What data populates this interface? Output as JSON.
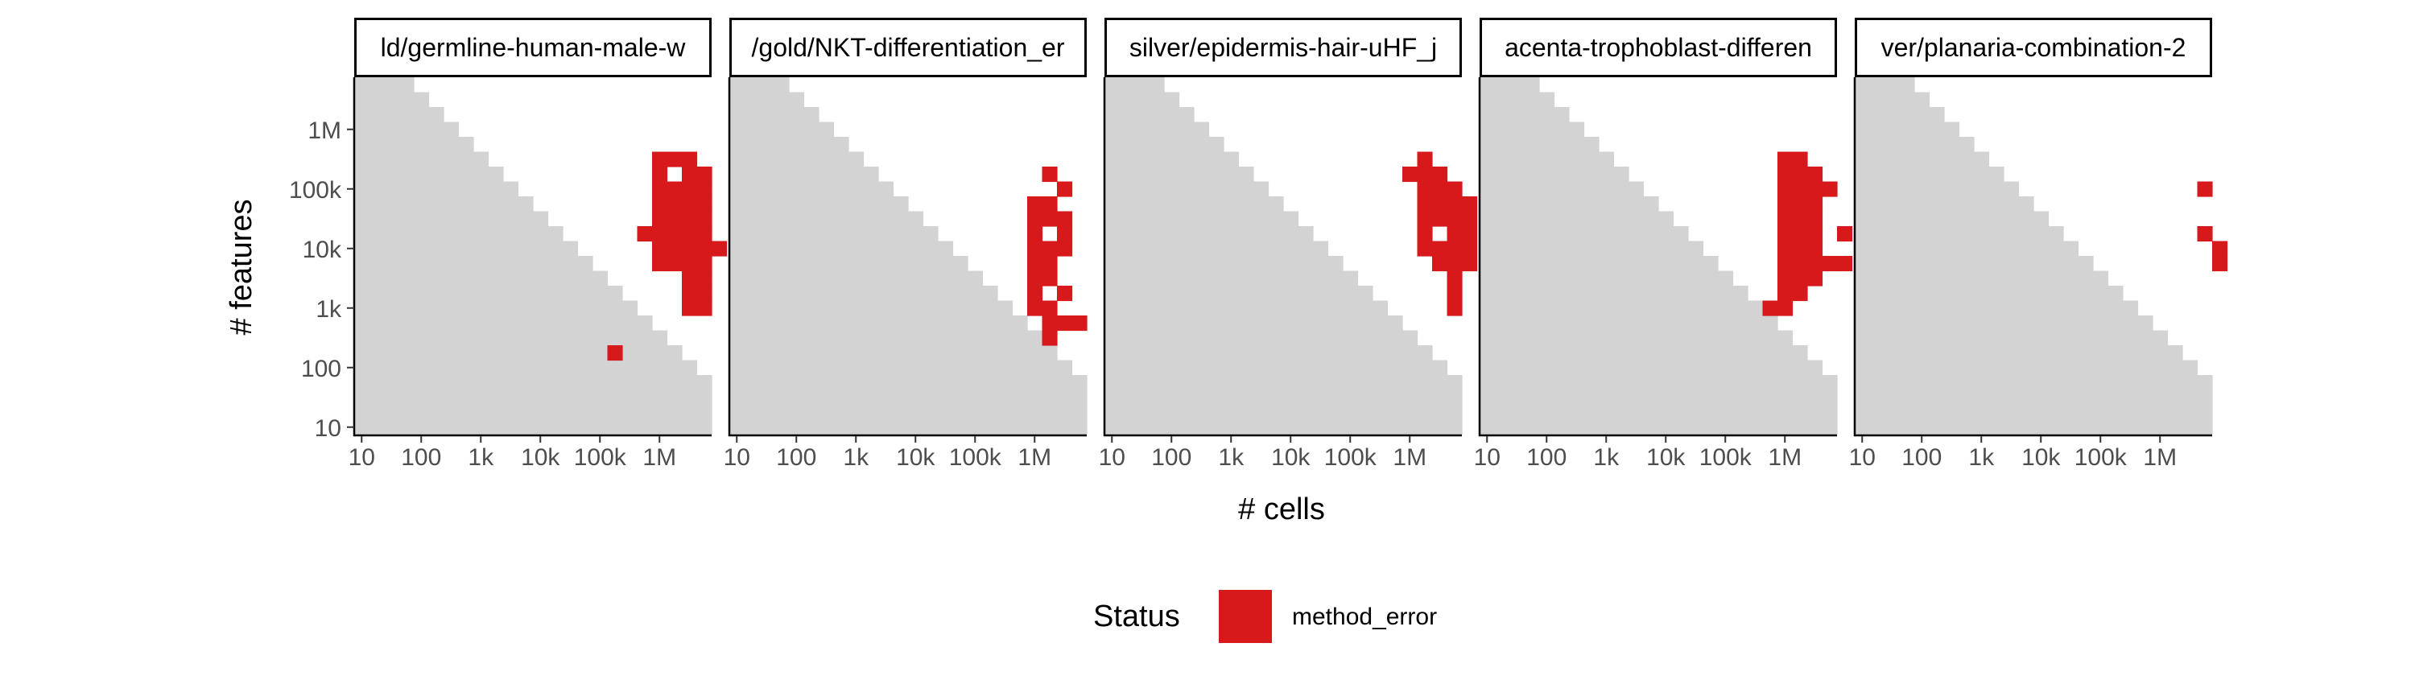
{
  "chart_data": {
    "type": "heatmap",
    "xlabel": "# cells",
    "ylabel": "# features",
    "x_scale": "log10",
    "y_scale": "log10",
    "xlim": [
      10,
      1000000
    ],
    "ylim": [
      10,
      1000000
    ],
    "x_ticks": [
      10,
      100,
      1000,
      10000,
      100000,
      1000000
    ],
    "x_tick_labels": [
      "10",
      "100",
      "1k",
      "10k",
      "100k",
      "1M"
    ],
    "y_ticks": [
      10,
      100,
      1000,
      10000,
      100000,
      1000000
    ],
    "y_tick_labels": [
      "10",
      "100",
      "1k",
      "10k",
      "100k",
      "1M"
    ],
    "background_region_color": "#d3d3d3",
    "legend": {
      "title": "Status",
      "position": "bottom",
      "items": [
        {
          "label": "method_error",
          "color": "#d7191c"
        }
      ]
    },
    "facets": [
      {
        "strip": "ld/germline-human-male-w",
        "method_error_cells": [
          [
            24,
            22
          ],
          [
            25,
            22
          ],
          [
            26,
            22
          ],
          [
            24,
            21
          ],
          [
            26,
            21
          ],
          [
            27,
            21
          ],
          [
            24,
            20
          ],
          [
            25,
            20
          ],
          [
            26,
            20
          ],
          [
            27,
            20
          ],
          [
            24,
            19
          ],
          [
            25,
            19
          ],
          [
            26,
            19
          ],
          [
            27,
            19
          ],
          [
            24,
            18
          ],
          [
            25,
            18
          ],
          [
            26,
            18
          ],
          [
            27,
            18
          ],
          [
            23,
            17
          ],
          [
            24,
            17
          ],
          [
            25,
            17
          ],
          [
            26,
            17
          ],
          [
            27,
            17
          ],
          [
            24,
            16
          ],
          [
            25,
            16
          ],
          [
            26,
            16
          ],
          [
            27,
            16
          ],
          [
            28,
            16
          ],
          [
            24,
            15
          ],
          [
            25,
            15
          ],
          [
            26,
            15
          ],
          [
            27,
            15
          ],
          [
            26,
            14
          ],
          [
            27,
            14
          ],
          [
            26,
            13
          ],
          [
            27,
            13
          ],
          [
            26,
            12
          ],
          [
            27,
            12
          ],
          [
            21,
            9
          ]
        ]
      },
      {
        "strip": "/gold/NKT-differentiation_er",
        "method_error_cells": [
          [
            25,
            21
          ],
          [
            26,
            20
          ],
          [
            24,
            19
          ],
          [
            25,
            19
          ],
          [
            24,
            18
          ],
          [
            25,
            18
          ],
          [
            26,
            18
          ],
          [
            24,
            17
          ],
          [
            26,
            17
          ],
          [
            24,
            16
          ],
          [
            25,
            16
          ],
          [
            26,
            16
          ],
          [
            24,
            15
          ],
          [
            25,
            15
          ],
          [
            24,
            14
          ],
          [
            25,
            14
          ],
          [
            24,
            13
          ],
          [
            26,
            13
          ],
          [
            24,
            12
          ],
          [
            25,
            12
          ],
          [
            25,
            11
          ],
          [
            26,
            11
          ],
          [
            27,
            11
          ],
          [
            25,
            10
          ]
        ]
      },
      {
        "strip": "silver/epidermis-hair-uHF_j",
        "method_error_cells": [
          [
            25,
            22
          ],
          [
            24,
            21
          ],
          [
            25,
            21
          ],
          [
            26,
            21
          ],
          [
            25,
            20
          ],
          [
            26,
            20
          ],
          [
            27,
            20
          ],
          [
            25,
            19
          ],
          [
            26,
            19
          ],
          [
            27,
            19
          ],
          [
            28,
            19
          ],
          [
            25,
            18
          ],
          [
            26,
            18
          ],
          [
            27,
            18
          ],
          [
            28,
            18
          ],
          [
            25,
            17
          ],
          [
            27,
            17
          ],
          [
            28,
            17
          ],
          [
            25,
            16
          ],
          [
            26,
            16
          ],
          [
            27,
            16
          ],
          [
            28,
            16
          ],
          [
            26,
            15
          ],
          [
            27,
            15
          ],
          [
            28,
            15
          ],
          [
            27,
            14
          ],
          [
            27,
            13
          ],
          [
            27,
            12
          ]
        ]
      },
      {
        "strip": "acenta-trophoblast-differen",
        "method_error_cells": [
          [
            24,
            22
          ],
          [
            25,
            22
          ],
          [
            24,
            21
          ],
          [
            25,
            21
          ],
          [
            26,
            21
          ],
          [
            24,
            20
          ],
          [
            25,
            20
          ],
          [
            26,
            20
          ],
          [
            27,
            20
          ],
          [
            24,
            19
          ],
          [
            25,
            19
          ],
          [
            26,
            19
          ],
          [
            24,
            18
          ],
          [
            25,
            18
          ],
          [
            26,
            18
          ],
          [
            24,
            17
          ],
          [
            25,
            17
          ],
          [
            26,
            17
          ],
          [
            28,
            17
          ],
          [
            24,
            16
          ],
          [
            25,
            16
          ],
          [
            26,
            16
          ],
          [
            24,
            15
          ],
          [
            25,
            15
          ],
          [
            26,
            15
          ],
          [
            27,
            15
          ],
          [
            28,
            15
          ],
          [
            24,
            14
          ],
          [
            25,
            14
          ],
          [
            26,
            14
          ],
          [
            24,
            13
          ],
          [
            25,
            13
          ],
          [
            23,
            12
          ],
          [
            24,
            12
          ]
        ]
      },
      {
        "strip": "ver/planaria-combination-2",
        "method_error_cells": [
          [
            27,
            20
          ],
          [
            27,
            17
          ],
          [
            28,
            16
          ],
          [
            28,
            15
          ]
        ]
      }
    ]
  }
}
